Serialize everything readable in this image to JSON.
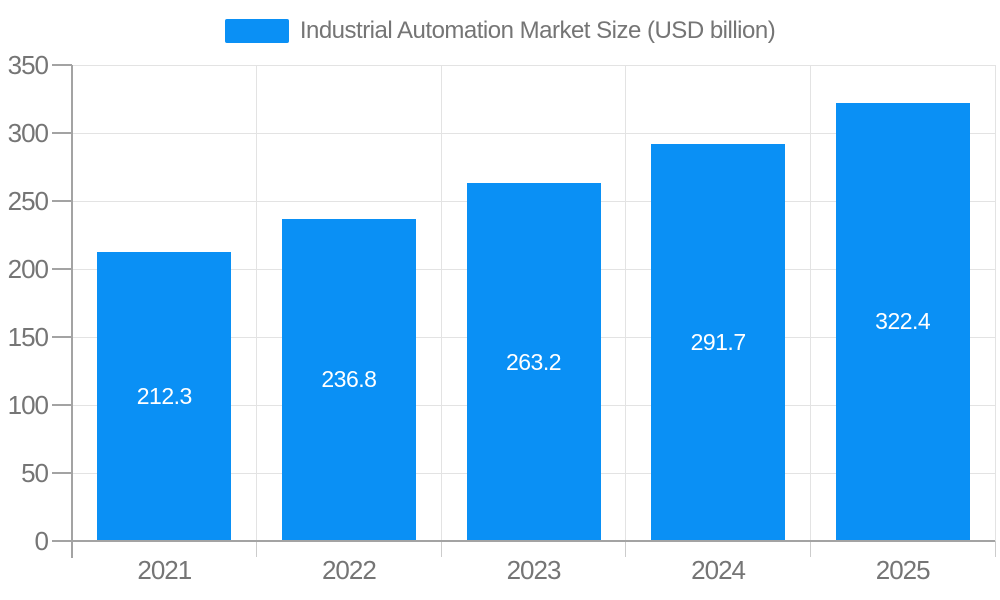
{
  "legend": {
    "label": "Industrial Automation Market Size (USD billion)"
  },
  "colors": {
    "bar": "#0A90F5",
    "axis_label": "#757575",
    "value_label": "#ffffff",
    "gridline": "#e3e3e3",
    "axis_line": "#a3a3a3",
    "x_tick": "#cccccc",
    "background": "#ffffff"
  },
  "chart_data": {
    "type": "bar",
    "title": "Industrial Automation Market Size (USD billion)",
    "series_name": "Industrial Automation Market Size (USD billion)",
    "categories": [
      "2021",
      "2022",
      "2023",
      "2024",
      "2025"
    ],
    "values": [
      212.3,
      236.8,
      263.2,
      291.7,
      322.4
    ],
    "value_labels": [
      "212.3",
      "236.8",
      "263.2",
      "291.7",
      "322.4"
    ],
    "xlabel": "",
    "ylabel": "",
    "ylim": [
      0,
      350
    ],
    "yticks": [
      0,
      50,
      100,
      150,
      200,
      250,
      300,
      350
    ],
    "grid": true,
    "legend_position": "top",
    "value_label_position": "inside-center"
  }
}
